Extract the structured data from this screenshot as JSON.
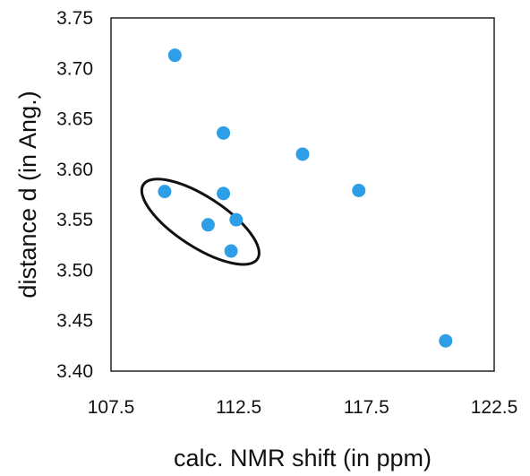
{
  "chart_data": {
    "type": "scatter",
    "xlabel": "calc. NMR shift (in ppm)",
    "ylabel": "distance d (in Ang.)",
    "xlim": [
      107.5,
      122.5
    ],
    "ylim": [
      3.4,
      3.75
    ],
    "x_ticks": [
      "107.5",
      "112.5",
      "117.5",
      "122.5"
    ],
    "y_ticks": [
      "3.40",
      "3.45",
      "3.50",
      "3.55",
      "3.60",
      "3.65",
      "3.70",
      "3.75"
    ],
    "grid": false,
    "points": [
      {
        "x": 110.0,
        "y": 3.713
      },
      {
        "x": 111.9,
        "y": 3.636
      },
      {
        "x": 115.0,
        "y": 3.615
      },
      {
        "x": 109.6,
        "y": 3.578
      },
      {
        "x": 111.9,
        "y": 3.576
      },
      {
        "x": 117.2,
        "y": 3.579
      },
      {
        "x": 112.4,
        "y": 3.55
      },
      {
        "x": 111.3,
        "y": 3.545
      },
      {
        "x": 112.2,
        "y": 3.519
      },
      {
        "x": 120.6,
        "y": 3.43
      }
    ],
    "marker_color": "#2e9fe6",
    "annotation": {
      "shape": "ellipse",
      "center": [
        111.0,
        3.548
      ]
    }
  }
}
